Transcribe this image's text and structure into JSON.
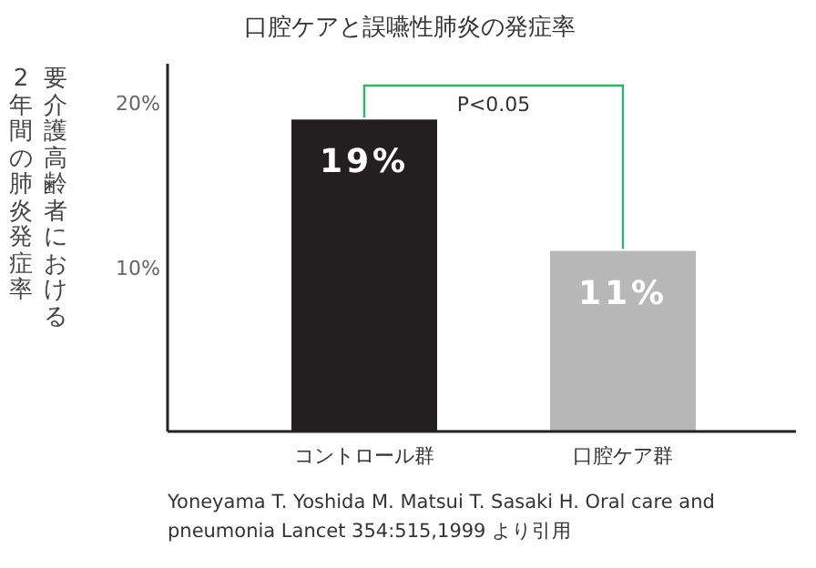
{
  "chart_data": {
    "type": "bar",
    "title": "口腔ケアと誤嚥性肺炎の発症率",
    "ylabel": "要介護高齢者における2年間の肺炎発症率",
    "categories": [
      "コントロール群",
      "口腔ケア群"
    ],
    "values": [
      19,
      11
    ],
    "colors": [
      "#231f20",
      "#b8b8b8"
    ],
    "value_labels": [
      "19%",
      "11%"
    ],
    "ylim": [
      0,
      22.4
    ],
    "yticks": [
      {
        "value": 10,
        "label": "10%"
      },
      {
        "value": 20,
        "label": "20%"
      }
    ],
    "annotations": [
      "P<0.05",
      "Yoneyama T. Yoshida M. Matsui T. Sasaki H. Oral care and pneumonia Lancet 354:515,1999 より引用"
    ]
  }
}
